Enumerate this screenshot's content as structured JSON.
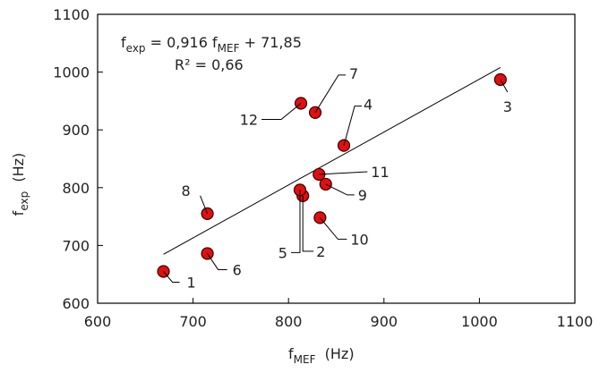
{
  "chart_data": {
    "type": "scatter",
    "title": "",
    "xlabel": {
      "main": "f",
      "sub": "MEF",
      "unit": "(Hz)"
    },
    "ylabel": {
      "main": "f",
      "sub": "exp",
      "unit": "(Hz)"
    },
    "xlim": [
      600,
      1100
    ],
    "ylim": [
      600,
      1100
    ],
    "xticks": [
      600,
      700,
      800,
      900,
      1000,
      1100
    ],
    "yticks": [
      600,
      700,
      800,
      900,
      1000,
      1100
    ],
    "grid": false,
    "legend": "none",
    "marker_color": "#e01010",
    "marker_stroke": "#3a0000",
    "line_color": "#000000",
    "points": [
      {
        "label": "1",
        "x": 669,
        "y": 655
      },
      {
        "label": "2",
        "x": 815,
        "y": 786
      },
      {
        "label": "3",
        "x": 1022,
        "y": 987
      },
      {
        "label": "4",
        "x": 858,
        "y": 873
      },
      {
        "label": "5",
        "x": 812,
        "y": 796
      },
      {
        "label": "6",
        "x": 715,
        "y": 686
      },
      {
        "label": "7",
        "x": 828,
        "y": 930
      },
      {
        "label": "8",
        "x": 715,
        "y": 755
      },
      {
        "label": "9",
        "x": 839,
        "y": 806
      },
      {
        "label": "10",
        "x": 833,
        "y": 748
      },
      {
        "label": "11",
        "x": 832,
        "y": 823
      },
      {
        "label": "12",
        "x": 813,
        "y": 946
      }
    ],
    "trendline": {
      "slope": 0.916,
      "intercept": 71.85,
      "x_range": [
        669,
        1022
      ]
    },
    "equation": {
      "line1": {
        "lhs_main": "f",
        "lhs_sub": "exp",
        "mid": " = 0,916 ",
        "rhs_main": "f",
        "rhs_sub": "MEF",
        "tail": " + 71,85"
      },
      "line2": "R² = 0,66"
    }
  }
}
